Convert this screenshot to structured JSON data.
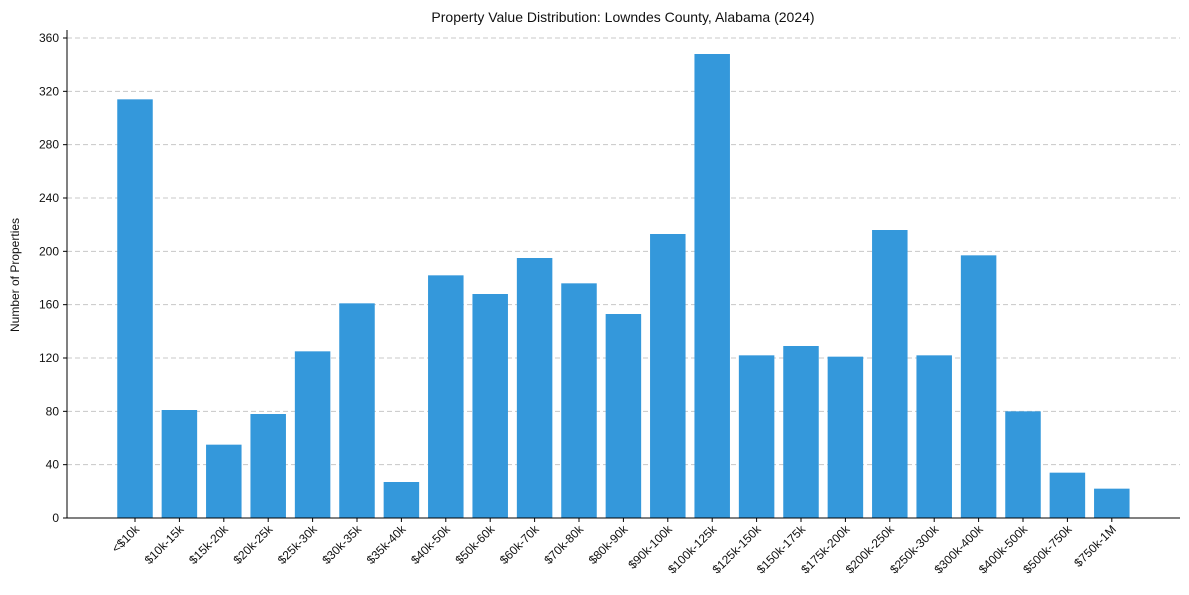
{
  "chart_data": {
    "type": "bar",
    "title": "Property Value Distribution: Lowndes County, Alabama (2024)",
    "xlabel": "",
    "ylabel": "Number of Properties",
    "categories": [
      "<$10k",
      "$10k-15k",
      "$15k-20k",
      "$20k-25k",
      "$25k-30k",
      "$30k-35k",
      "$35k-40k",
      "$40k-50k",
      "$50k-60k",
      "$60k-70k",
      "$70k-80k",
      "$80k-90k",
      "$90k-100k",
      "$100k-125k",
      "$125k-150k",
      "$150k-175k",
      "$175k-200k",
      "$200k-250k",
      "$250k-300k",
      "$300k-400k",
      "$400k-500k",
      "$500k-750k",
      "$750k-1M"
    ],
    "values": [
      314,
      81,
      55,
      78,
      125,
      161,
      27,
      182,
      168,
      195,
      176,
      153,
      213,
      348,
      122,
      129,
      121,
      216,
      122,
      197,
      80,
      34,
      22
    ],
    "ylim": [
      0,
      366
    ],
    "yticks": [
      0,
      40,
      80,
      120,
      160,
      200,
      240,
      280,
      320,
      360
    ],
    "grid": "y-dashed",
    "bar_color": "#3498db"
  }
}
